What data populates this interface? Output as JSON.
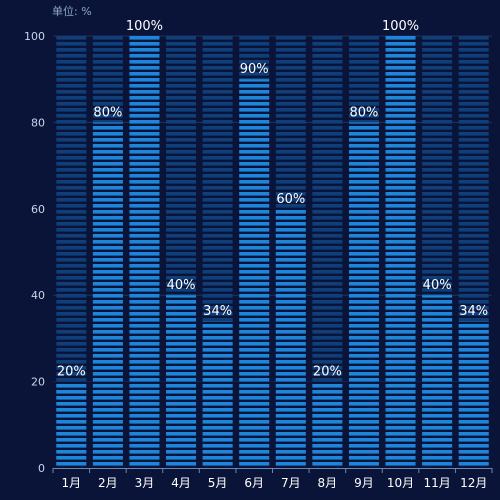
{
  "chart_data": {
    "type": "bar",
    "unit_label": "单位: %",
    "categories": [
      "1月",
      "2月",
      "3月",
      "4月",
      "5月",
      "6月",
      "7月",
      "8月",
      "9月",
      "10月",
      "11月",
      "12月"
    ],
    "values": [
      20,
      80,
      100,
      40,
      34,
      90,
      60,
      20,
      80,
      100,
      40,
      34
    ],
    "data_labels": [
      "20%",
      "80%",
      "100%",
      "40%",
      "34%",
      "90%",
      "60%",
      "20%",
      "80%",
      "100%",
      "40%",
      "34%"
    ],
    "y_ticks": [
      0,
      20,
      40,
      60,
      80,
      100
    ],
    "ylim": [
      0,
      100
    ],
    "grid": true,
    "colors": {
      "background": "#0a1439",
      "bar_fill": "#1e86da",
      "bar_track": "#0f3e79",
      "stripe_gap": "#0a1439",
      "axis": "#6b86b3",
      "gridline": "#22315e"
    }
  }
}
